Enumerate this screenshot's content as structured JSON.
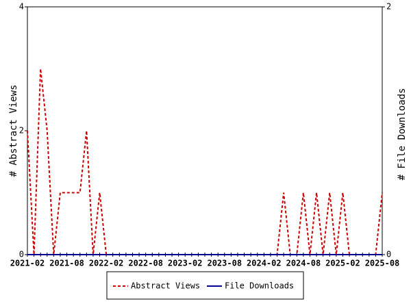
{
  "chart_data": {
    "type": "line",
    "y_label": "# Abstract Views",
    "y2_label": "# File Downloads",
    "categories": [
      "2021-02",
      null,
      null,
      null,
      null,
      null,
      "2021-08",
      null,
      null,
      null,
      null,
      null,
      "2022-02",
      null,
      null,
      null,
      null,
      null,
      "2022-08",
      null,
      null,
      null,
      null,
      null,
      "2023-02",
      null,
      null,
      null,
      null,
      null,
      "2023-08",
      null,
      null,
      null,
      null,
      null,
      "2024-02",
      null,
      null,
      null,
      null,
      null,
      "2024-08",
      null,
      null,
      null,
      null,
      null,
      "2025-02",
      null,
      null,
      null,
      null,
      null,
      "2025-08"
    ],
    "series": [
      {
        "name": "Abstract Views",
        "color": "#cc0000",
        "dash": true,
        "values": [
          2,
          0,
          3,
          2,
          0,
          1,
          1,
          1,
          1,
          2,
          0,
          1,
          0,
          0,
          0,
          0,
          0,
          0,
          0,
          0,
          0,
          0,
          0,
          0,
          0,
          0,
          0,
          0,
          0,
          0,
          0,
          0,
          0,
          0,
          0,
          0,
          0,
          0,
          0,
          1,
          0,
          0,
          1,
          0,
          1,
          0,
          1,
          0,
          1,
          0,
          0,
          0,
          0,
          0,
          1
        ]
      },
      {
        "name": "File Downloads",
        "color": "#000099",
        "dash": false,
        "axis": "y2",
        "values": [
          0,
          0,
          0,
          0,
          0,
          0,
          0,
          0,
          0,
          0,
          0,
          0,
          0,
          0,
          0,
          0,
          0,
          0,
          0,
          0,
          0,
          0,
          0,
          0,
          0,
          0,
          0,
          0,
          0,
          0,
          0,
          0,
          0,
          0,
          0,
          0,
          0,
          0,
          0,
          0,
          0,
          0,
          0,
          0,
          0,
          0,
          0,
          0,
          0,
          0,
          0,
          0,
          0,
          0,
          0
        ]
      }
    ],
    "ylim": [
      0,
      4
    ],
    "yticks": [
      0,
      2,
      4
    ],
    "y2lim": [
      0,
      2
    ],
    "y2ticks": [
      0,
      2
    ],
    "legend": "bottom"
  }
}
